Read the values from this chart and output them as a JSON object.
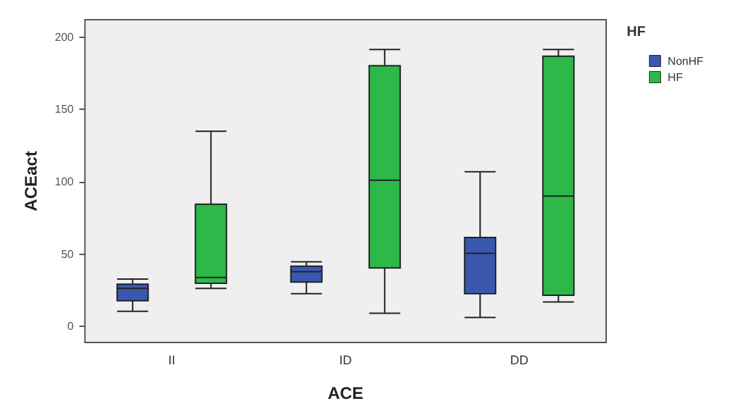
{
  "chart_data": {
    "type": "box",
    "xlabel": "ACE",
    "ylabel": "ACEact",
    "legend_title": "HF",
    "categories": [
      "II",
      "ID",
      "DD"
    ],
    "series": [
      {
        "name": "NonHF",
        "color": "#3a58b0",
        "boxes": [
          {
            "low": 10.6,
            "q1": 17.8,
            "median": 26.4,
            "q3": 29.3,
            "high": 32.8
          },
          {
            "low": 22.7,
            "q1": 30.7,
            "median": 37.9,
            "q3": 41.7,
            "high": 44.8
          },
          {
            "low": 6.3,
            "q1": 22.7,
            "median": 50.6,
            "q3": 61.5,
            "high": 106.9
          }
        ]
      },
      {
        "name": "HF",
        "color": "#2db84a",
        "boxes": [
          {
            "low": 26.4,
            "q1": 29.9,
            "median": 33.9,
            "q3": 84.5,
            "high": 135
          },
          {
            "low": 9.2,
            "q1": 40.5,
            "median": 101.1,
            "q3": 180.2,
            "high": 191.4
          },
          {
            "low": 17,
            "q1": 21.6,
            "median": 90.2,
            "q3": 186.8,
            "high": 191.4
          }
        ]
      }
    ],
    "ylim": [
      -11,
      212
    ],
    "yticks": [
      0,
      50,
      100,
      150,
      200
    ],
    "grid": false,
    "legend": "top right"
  }
}
